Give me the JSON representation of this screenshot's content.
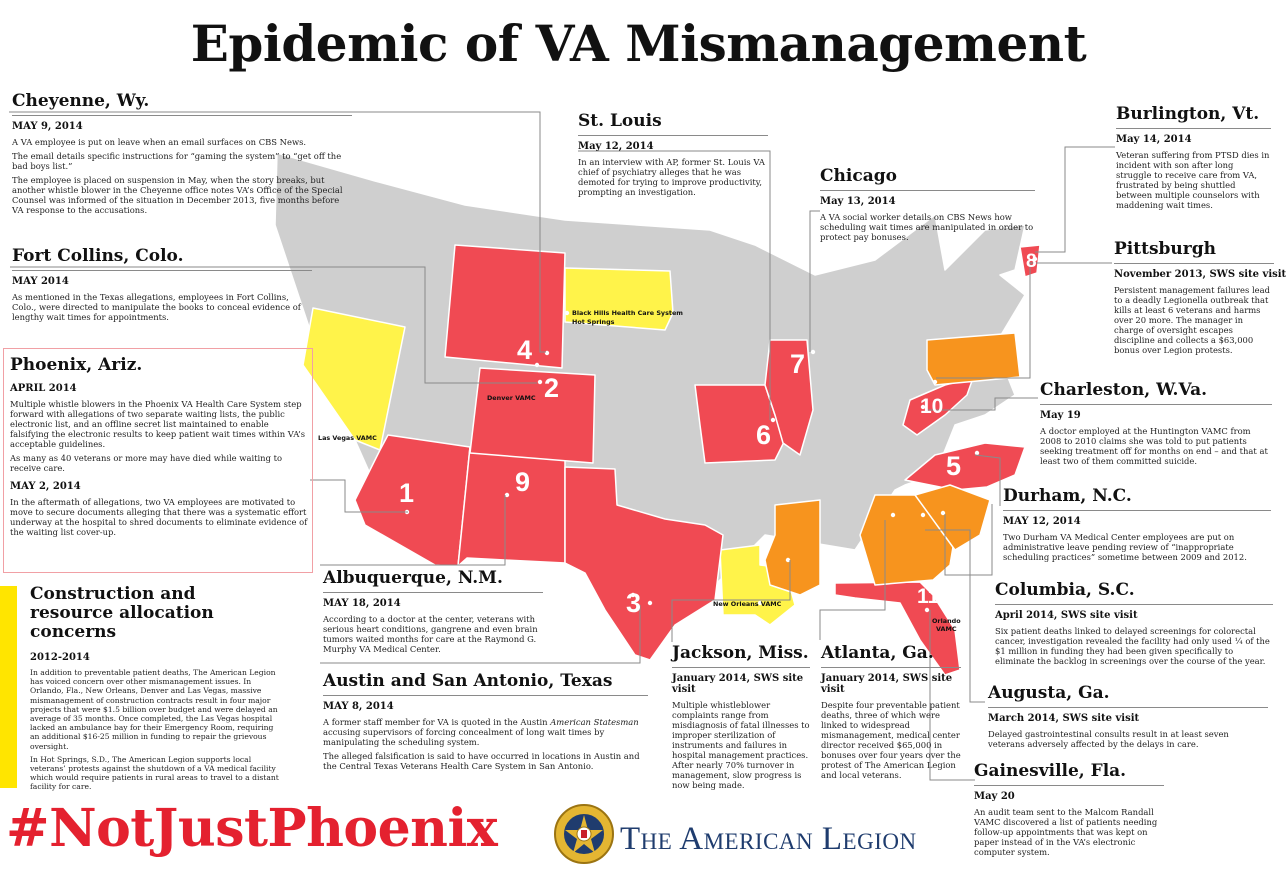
{
  "title": "Epidemic of VA Mismanagement",
  "colors": {
    "red": "#f04a53",
    "orange": "#f7941e",
    "yellow": "#fff34a",
    "gray": "#cfcfcf",
    "hashtag": "#e4212f",
    "legion_blue": "#1f3c6e"
  },
  "cheyenne": {
    "city": "Cheyenne, Wy.",
    "date": "MAY 9, 2014",
    "p1": "A VA employee is put on leave when an email surfaces on CBS News.",
    "p2": "The email details specific instructions for “gaming the system” to “get off the bad boys list.”",
    "p3": "The employee is placed on suspension in May, when the story breaks, but another whistle blower in the Cheyenne office notes VA’s Office of the Special Counsel was informed of the situation in December 2013, five months before VA response to the accusations."
  },
  "fortcollins": {
    "city": "Fort Collins, Colo.",
    "date": "MAY 2014",
    "p1": "As mentioned in the Texas allegations, employees in Fort Collins, Colo., were directed to manipulate the books to conceal evidence of lengthy wait times for appointments."
  },
  "phoenix": {
    "city": "Phoenix, Ariz.",
    "date1": "APRIL 2014",
    "p1": "Multiple whistle blowers in the Phoenix VA Health Care System step forward with allegations of two separate waiting lists, the public electronic list, and an offline secret list maintained to enable falsifying the electronic results to keep patient wait times within VA’s acceptable guidelines.",
    "p2": "As many as 40 veterans or more may have died while waiting to receive care.",
    "date2": "MAY 2, 2014",
    "p3": "In the aftermath of allegations, two VA employees are motivated to move to secure documents alleging that there was a systematic effort underway at the hospital to shred documents to eliminate evidence of the waiting list cover-up."
  },
  "construction": {
    "heading": "Construction and resource allocation concerns",
    "date": "2012-2014",
    "p1": "In addition to preventable patient deaths, The American Legion has voiced concern over other mismanagement issues. In Orlando, Fla., New Orleans, Denver and Las Vegas, massive mismanagement of construction contracts result in four major projects that were $1.5 billion over budget and were delayed an average of 35 months. Once completed, the Las Vegas hospital lacked an ambulance bay for their Emergency Room, requiring an additional $16-25 million in funding to repair the grievous oversight.",
    "p2": "In Hot Springs, S.D., The American Legion supports local veterans’ protests against the shutdown of a VA medical facility which would require patients in rural areas to travel to a distant facility for care."
  },
  "stlouis": {
    "city": "St. Louis",
    "date": "May 12, 2014",
    "p1": "In an interview with AP, former St. Louis VA chief of psychiatry alleges that he was demoted for trying to improve productivity, prompting an investigation."
  },
  "chicago": {
    "city": "Chicago",
    "date": "May 13, 2014",
    "p1": "A VA social worker details on CBS News how scheduling wait times are manipulated in order to protect pay bonuses."
  },
  "burlington": {
    "city": "Burlington, Vt.",
    "date": "May 14, 2014",
    "p1": "Veteran suffering from PTSD dies in incident with son after long struggle to receive care from VA, frustrated by being shuttled between multiple counselors with maddening wait times."
  },
  "pittsburgh": {
    "city": "Pittsburgh",
    "date": "November 2013, SWS site visit",
    "p1": "Persistent management failures lead to a deadly Legionella outbreak that kills at least 6 veterans and harms over 20 more.  The manager in charge of oversight escapes discipline and collects a $63,000 bonus over Legion protests."
  },
  "charleston": {
    "city": "Charleston, W.Va.",
    "date": "May 19",
    "p1": "A doctor employed at the Huntington VAMC  from 2008 to 2010 claims she was told to put patients seeking treatment off for months on end – and that at least two of them committed suicide."
  },
  "durham": {
    "city": "Durham, N.C.",
    "date": "MAY 12, 2014",
    "p1": "Two Durham VA Medical Center employees are put on administrative leave pending review of “inappropriate scheduling practices” sometime between 2009 and 2012."
  },
  "columbia": {
    "city": "Columbia, S.C.",
    "date": "April 2014, SWS site visit",
    "p1": "Six patient deaths linked to delayed screenings for colorectal cancer, investigation revealed the facility had only used ¼ of the $1 million in funding they had been given specifically to eliminate the backlog in screenings over the course of the year."
  },
  "augusta": {
    "city": "Augusta, Ga.",
    "date": "March 2014, SWS site visit",
    "p1": "Delayed gastrointestinal consults result in at least seven veterans adversely affected by the delays in care."
  },
  "gainesville": {
    "city": "Gainesville, Fla.",
    "date": "May 20",
    "p1": "An audit team sent to the Malcom Randall VAMC discovered a list of patients needing follow-up appointments that was kept on paper instead of in the VA’s electronic computer system."
  },
  "albuquerque": {
    "city": "Albuquerque, N.M.",
    "date": "MAY 18, 2014",
    "p1": "According to a doctor at the center, veterans with serious heart conditions, gangrene and even brain tumors waited months for care at the Raymond G. Murphy VA Medical Center."
  },
  "austin": {
    "city": "Austin and San Antonio, Texas",
    "date": "MAY 8, 2014",
    "p1a": "A former staff member for VA is quoted in the Austin ",
    "p1i": "American Statesman",
    "p1b": " accusing supervisors of forcing concealment of long wait times by manipulating the scheduling system.",
    "p2": "The alleged falsification is said to have occurred in locations in Austin and the Central Texas Veterans Health Care System in San Antonio."
  },
  "jackson": {
    "city": "Jackson, Miss.",
    "date": "January 2014, SWS site visit",
    "p1": "Multiple whistleblower complaints range from misdiagnosis of fatal illnesses to improper sterilization of instruments and failures in hospital management practices.  After nearly 70% turnover in management, slow progress is now being made."
  },
  "atlanta": {
    "city": "Atlanta, Ga.",
    "date": "January 2014, SWS site visit",
    "p1": "Despite four preventable patient deaths, three of which were linked to widespread mismanagement, medical center director received $65,000 in bonuses over four years over the protest of The American Legion and local veterans."
  },
  "map": {
    "labels": {
      "las_vegas": "Las Vegas VAMC",
      "denver": "Denver VAMC",
      "black_hills_1": "Black Hills Health Care System",
      "black_hills_2": "Hot Springs",
      "new_orleans": "New Orleans VAMC",
      "orlando_1": "Orlando",
      "orlando_2": "VAMC"
    },
    "numbers": {
      "n1": "1",
      "n2": "2",
      "n3": "3",
      "n4": "4",
      "n5": "5",
      "n6": "6",
      "n7": "7",
      "n8": "8",
      "n9": "9",
      "n10": "10",
      "n11": "11"
    }
  },
  "footer": {
    "hashtag": "#NotJustPhoenix",
    "org": "The American Legion",
    "emblem_icon": "american-legion-emblem-icon"
  }
}
